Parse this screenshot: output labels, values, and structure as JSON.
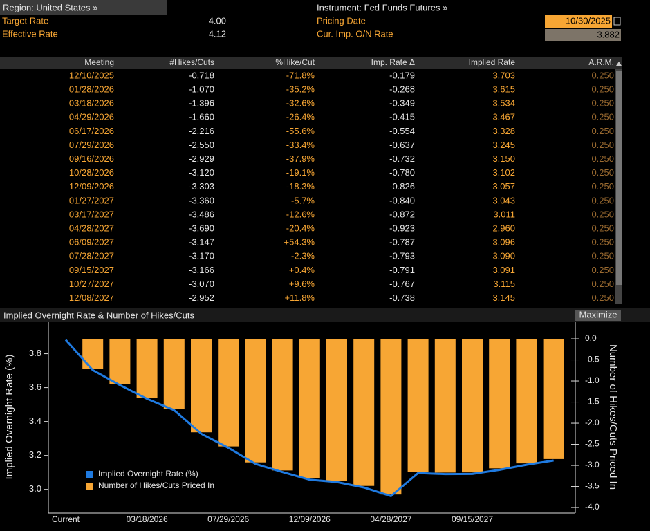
{
  "header": {
    "region": "Region: United States »",
    "instrument": "Instrument: Fed Funds Futures »",
    "target_rate": {
      "label": "Target Rate",
      "value": "4.00"
    },
    "effective_rate": {
      "label": "Effective Rate",
      "value": "4.12"
    },
    "pricing_date": {
      "label": "Pricing Date",
      "value": "10/30/2025"
    },
    "cur_imp_rate": {
      "label": "Cur. Imp. O/N Rate",
      "value": "3.882"
    }
  },
  "table": {
    "columns": [
      "Meeting",
      "#Hikes/Cuts",
      "%Hike/Cut",
      "Imp. Rate Δ",
      "Implied Rate",
      "A.R.M."
    ],
    "rows": [
      [
        "12/10/2025",
        "-0.718",
        "-71.8%",
        "-0.179",
        "3.703",
        "0.250"
      ],
      [
        "01/28/2026",
        "-1.070",
        "-35.2%",
        "-0.268",
        "3.615",
        "0.250"
      ],
      [
        "03/18/2026",
        "-1.396",
        "-32.6%",
        "-0.349",
        "3.534",
        "0.250"
      ],
      [
        "04/29/2026",
        "-1.660",
        "-26.4%",
        "-0.415",
        "3.467",
        "0.250"
      ],
      [
        "06/17/2026",
        "-2.216",
        "-55.6%",
        "-0.554",
        "3.328",
        "0.250"
      ],
      [
        "07/29/2026",
        "-2.550",
        "-33.4%",
        "-0.637",
        "3.245",
        "0.250"
      ],
      [
        "09/16/2026",
        "-2.929",
        "-37.9%",
        "-0.732",
        "3.150",
        "0.250"
      ],
      [
        "10/28/2026",
        "-3.120",
        "-19.1%",
        "-0.780",
        "3.102",
        "0.250"
      ],
      [
        "12/09/2026",
        "-3.303",
        "-18.3%",
        "-0.826",
        "3.057",
        "0.250"
      ],
      [
        "01/27/2027",
        "-3.360",
        "-5.7%",
        "-0.840",
        "3.043",
        "0.250"
      ],
      [
        "03/17/2027",
        "-3.486",
        "-12.6%",
        "-0.872",
        "3.011",
        "0.250"
      ],
      [
        "04/28/2027",
        "-3.690",
        "-20.4%",
        "-0.923",
        "2.960",
        "0.250"
      ],
      [
        "06/09/2027",
        "-3.147",
        "+54.3%",
        "-0.787",
        "3.096",
        "0.250"
      ],
      [
        "07/28/2027",
        "-3.170",
        "-2.3%",
        "-0.793",
        "3.090",
        "0.250"
      ],
      [
        "09/15/2027",
        "-3.166",
        "+0.4%",
        "-0.791",
        "3.091",
        "0.250"
      ],
      [
        "10/27/2027",
        "-3.070",
        "+9.6%",
        "-0.767",
        "3.115",
        "0.250"
      ],
      [
        "12/08/2027",
        "-2.952",
        "+11.8%",
        "-0.738",
        "3.145",
        "0.250"
      ]
    ]
  },
  "chart_data": {
    "type": "combo",
    "title": "Implied Overnight Rate & Number of Hikes/Cuts",
    "button": "Maximize",
    "ylabel": "Implied Overnight Rate (%)",
    "y2label": "Number of Hikes/Cuts Priced In",
    "categories": [
      "Current",
      null,
      null,
      "03/18/2026",
      null,
      null,
      "07/29/2026",
      null,
      null,
      "12/09/2026",
      null,
      null,
      "04/28/2027",
      null,
      null,
      "09/15/2027",
      null,
      null,
      null
    ],
    "series": [
      {
        "name": "Implied Overnight Rate (%)",
        "type": "line",
        "color": "#1f7ae0",
        "values": [
          3.882,
          3.703,
          3.615,
          3.534,
          3.467,
          3.328,
          3.245,
          3.15,
          3.102,
          3.057,
          3.043,
          3.011,
          2.96,
          3.096,
          3.09,
          3.091,
          3.115,
          3.145,
          3.17
        ]
      },
      {
        "name": "Number of Hikes/Cuts Priced In",
        "type": "bar",
        "axis": "y2",
        "color": "#f7a634",
        "values": [
          null,
          -0.718,
          -1.07,
          -1.396,
          -1.66,
          -2.216,
          -2.55,
          -2.929,
          -3.12,
          -3.303,
          -3.36,
          -3.486,
          -3.69,
          -3.147,
          -3.17,
          -3.166,
          -3.07,
          -2.952,
          -2.85
        ]
      }
    ],
    "ylim": [
      2.86,
      3.99
    ],
    "yticks": [
      {
        "value": 3,
        "label": "3.0"
      },
      3.2,
      3.4,
      3.6,
      3.8
    ],
    "y2lim": [
      -4.13,
      0.41
    ],
    "y2ticks": [
      {
        "value": -4,
        "label": "-4.0"
      },
      -3.5,
      {
        "value": -3,
        "label": "-3.0"
      },
      -2.5,
      {
        "value": -2,
        "label": "-2.0"
      },
      -1.5,
      {
        "value": -1,
        "label": "-1.0"
      },
      -0.5,
      {
        "value": 0,
        "label": "0.0"
      }
    ],
    "legend": "lower left"
  }
}
